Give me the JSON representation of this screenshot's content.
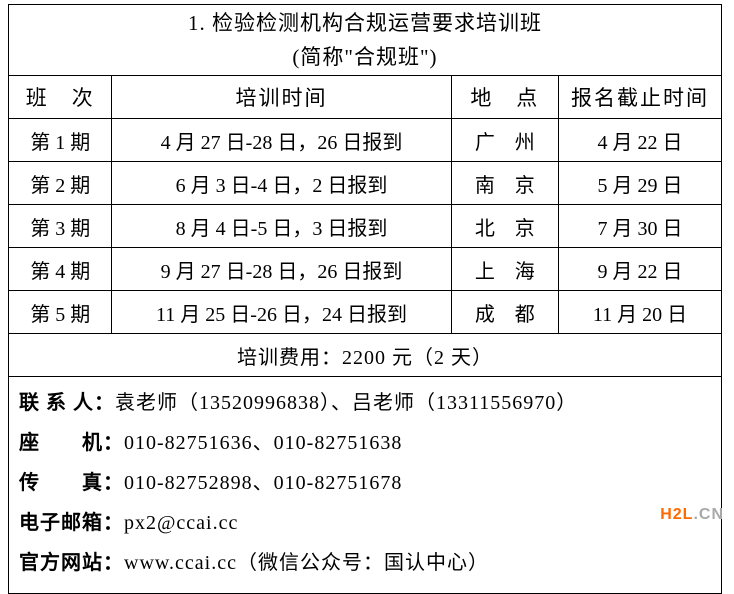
{
  "title": {
    "line1": "1. 检验检测机构合规运营要求培训班",
    "line2": "(简称\"合规班\")"
  },
  "headers": {
    "session": "班　次",
    "time": "培训时间",
    "location": "地　点",
    "deadline": "报名截止时间"
  },
  "rows": [
    {
      "session": "第 1 期",
      "time": "4 月 27 日-28 日，26 日报到",
      "location": "广　州",
      "deadline": "4 月 22 日"
    },
    {
      "session": "第 2 期",
      "time": "6 月 3 日-4 日，2 日报到",
      "location": "南　京",
      "deadline": "5 月 29 日"
    },
    {
      "session": "第 3 期",
      "time": "8 月 4 日-5 日，3 日报到",
      "location": "北　京",
      "deadline": "7 月 30 日"
    },
    {
      "session": "第 4 期",
      "time": "9 月 27 日-28 日，26 日报到",
      "location": "上　海",
      "deadline": "9 月 22 日"
    },
    {
      "session": "第 5 期",
      "time": "11 月 25 日-26 日，24 日报到",
      "location": "成　都",
      "deadline": "11 月 20 日"
    }
  ],
  "fee": "培训费用：2200 元（2 天）",
  "contact": {
    "person_label": "联 系 人：",
    "person_value": "袁老师（13520996838）、吕老师（13311556970）",
    "tel_label": "座　　机：",
    "tel_value": "010-82751636、010-82751638",
    "fax_label": "传　　真：",
    "fax_value": "010-82752898、010-82751678",
    "email_label": "电子邮箱：",
    "email_value": "px2@ccai.cc",
    "site_label": "官方网站：",
    "site_value": "www.ccai.cc（微信公众号：国认中心）"
  },
  "watermark": {
    "p1": "H2L",
    "p2": ".CN"
  },
  "colors": {
    "border": "#000000",
    "background": "#ffffff",
    "wm_orange": "#ff6a00",
    "wm_gray": "#a9a9a9"
  }
}
